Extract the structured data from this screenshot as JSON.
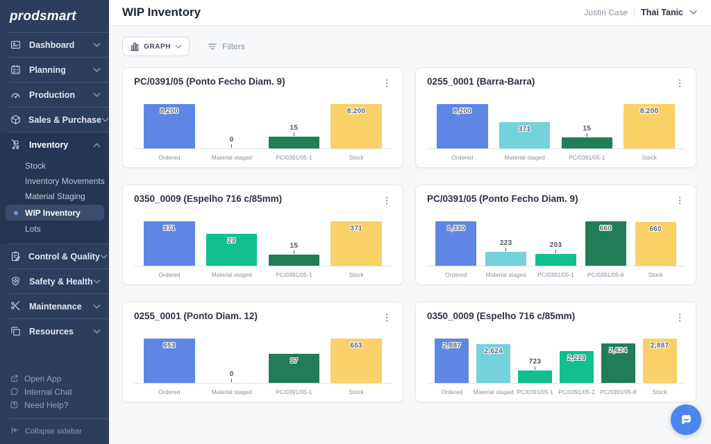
{
  "sidebar": {
    "logo": "prodsmart",
    "items": [
      {
        "label": "Dashboard",
        "icon": "dashboard-icon",
        "chevron": "down"
      },
      {
        "label": "Planning",
        "icon": "planning-icon",
        "chevron": "down"
      },
      {
        "label": "Production",
        "icon": "production-icon",
        "chevron": "down"
      },
      {
        "label": "Sales & Purchase",
        "icon": "sales-purchase-icon",
        "chevron": "down"
      },
      {
        "label": "Inventory",
        "icon": "inventory-icon",
        "chevron": "up",
        "expanded": true,
        "children": [
          {
            "label": "Stock",
            "active": false
          },
          {
            "label": "Inventory Movements",
            "active": false
          },
          {
            "label": "Material Staging",
            "active": false
          },
          {
            "label": "WIP Inventory",
            "active": true
          },
          {
            "label": "Lots",
            "active": false
          }
        ]
      },
      {
        "label": "Control & Quality",
        "icon": "control-quality-icon",
        "chevron": "down"
      },
      {
        "label": "Safety & Health",
        "icon": "safety-health-icon",
        "chevron": "down"
      },
      {
        "label": "Maintenance",
        "icon": "maintenance-icon",
        "chevron": "down"
      },
      {
        "label": "Resources",
        "icon": "resources-icon",
        "chevron": "down"
      }
    ],
    "footer_links": [
      {
        "label": "Open App",
        "icon": "open-app-icon"
      },
      {
        "label": "Internal Chat",
        "icon": "internal-chat-icon"
      },
      {
        "label": "Need Help?",
        "icon": "need-help-icon"
      }
    ],
    "collapse_label": "Collapse sidebar"
  },
  "header": {
    "title": "WIP Inventory",
    "user_name": "Justin Case",
    "account_name": "Thai Tanic"
  },
  "toolbar": {
    "graph_button": "GRAPH",
    "filters_button": "Filters"
  },
  "palette": {
    "blue": "#5E87E5",
    "teal": "#74D2DD",
    "emerald": "#10C08E",
    "dark_green": "#217D57",
    "yellow": "#F9D167",
    "sidebar_bg": "#2E3C5E",
    "active_dot": "#5F8DF0",
    "chat_fab": "#4A86EE"
  },
  "chart_data": [
    {
      "type": "bar",
      "title": "PC/0391/05 (Ponto Fecho Diam. 9)",
      "categories": [
        "Ordered",
        "Material staged",
        "PC/0391/05-1",
        "Stock"
      ],
      "values": [
        8200,
        0,
        15,
        8200
      ],
      "value_labels": [
        "8,200",
        "0",
        "15",
        "8,200"
      ],
      "bar_colors": [
        "blue",
        "teal",
        "dark_green",
        "yellow"
      ],
      "bar_heights_pct": [
        100,
        0,
        26,
        100
      ],
      "label_inside": [
        true,
        false,
        false,
        true
      ]
    },
    {
      "type": "bar",
      "title": "0255_0001 (Barra-Barra)",
      "categories": [
        "Ordered",
        "Material staged",
        "PC/0391/05-1",
        "Stock"
      ],
      "values": [
        8200,
        371,
        15,
        8200
      ],
      "value_labels": [
        "8,200",
        "371",
        "15",
        "8,200"
      ],
      "bar_colors": [
        "blue",
        "teal",
        "dark_green",
        "yellow"
      ],
      "bar_heights_pct": [
        100,
        60,
        25,
        100
      ],
      "label_inside": [
        true,
        true,
        false,
        true
      ]
    },
    {
      "type": "bar",
      "title": "0350_0009 (Espelho 716 c/85mm)",
      "categories": [
        "Ordered",
        "Material staged",
        "PC/0391/05-1",
        "Stock"
      ],
      "values": [
        371,
        23,
        15,
        371
      ],
      "value_labels": [
        "371",
        "23",
        "15",
        "371"
      ],
      "bar_colors": [
        "blue",
        "emerald",
        "dark_green",
        "yellow"
      ],
      "bar_heights_pct": [
        100,
        72,
        25,
        100
      ],
      "label_inside": [
        true,
        true,
        false,
        true
      ]
    },
    {
      "type": "bar",
      "title": "PC/0391/05 (Ponto Fecho Diam. 9)",
      "categories": [
        "Ordered",
        "Material staged",
        "PC/0391/05-1",
        "PC/0391/05-6",
        "Stock"
      ],
      "values": [
        1330,
        223,
        203,
        660,
        660
      ],
      "value_labels": [
        "1,330",
        "223",
        "203",
        "660",
        "660"
      ],
      "bar_colors": [
        "blue",
        "teal",
        "emerald",
        "dark_green",
        "yellow"
      ],
      "bar_heights_pct": [
        100,
        32,
        27,
        100,
        98
      ],
      "label_inside": [
        true,
        false,
        false,
        true,
        true
      ]
    },
    {
      "type": "bar",
      "title": "0255_0001 (Ponto Diam. 12)",
      "categories": [
        "Ordered",
        "Material staged",
        "PC/0391/05-1",
        "Stock"
      ],
      "values": [
        653,
        0,
        17,
        653
      ],
      "value_labels": [
        "653",
        "0",
        "17",
        "653"
      ],
      "bar_colors": [
        "blue",
        "teal",
        "dark_green",
        "yellow"
      ],
      "bar_heights_pct": [
        100,
        0,
        65,
        100
      ],
      "label_inside": [
        true,
        false,
        true,
        true
      ]
    },
    {
      "type": "bar",
      "title": "0350_0009 (Espelho 716 c/85mm)",
      "categories": [
        "Ordered",
        "Material staged",
        "PC/0391/05-1",
        "PC/0391/05-2",
        "PC/0391/05-8",
        "Stock"
      ],
      "values": [
        2887,
        2624,
        723,
        2213,
        2624,
        2887
      ],
      "value_labels": [
        "2,887",
        "2,624",
        "723",
        "2,213",
        "2,624",
        "2,887"
      ],
      "bar_colors": [
        "blue",
        "teal",
        "emerald",
        "emerald",
        "dark_green",
        "yellow"
      ],
      "bar_heights_pct": [
        100,
        87,
        28,
        72,
        89,
        100
      ],
      "label_inside": [
        true,
        true,
        false,
        true,
        true,
        true
      ]
    }
  ]
}
